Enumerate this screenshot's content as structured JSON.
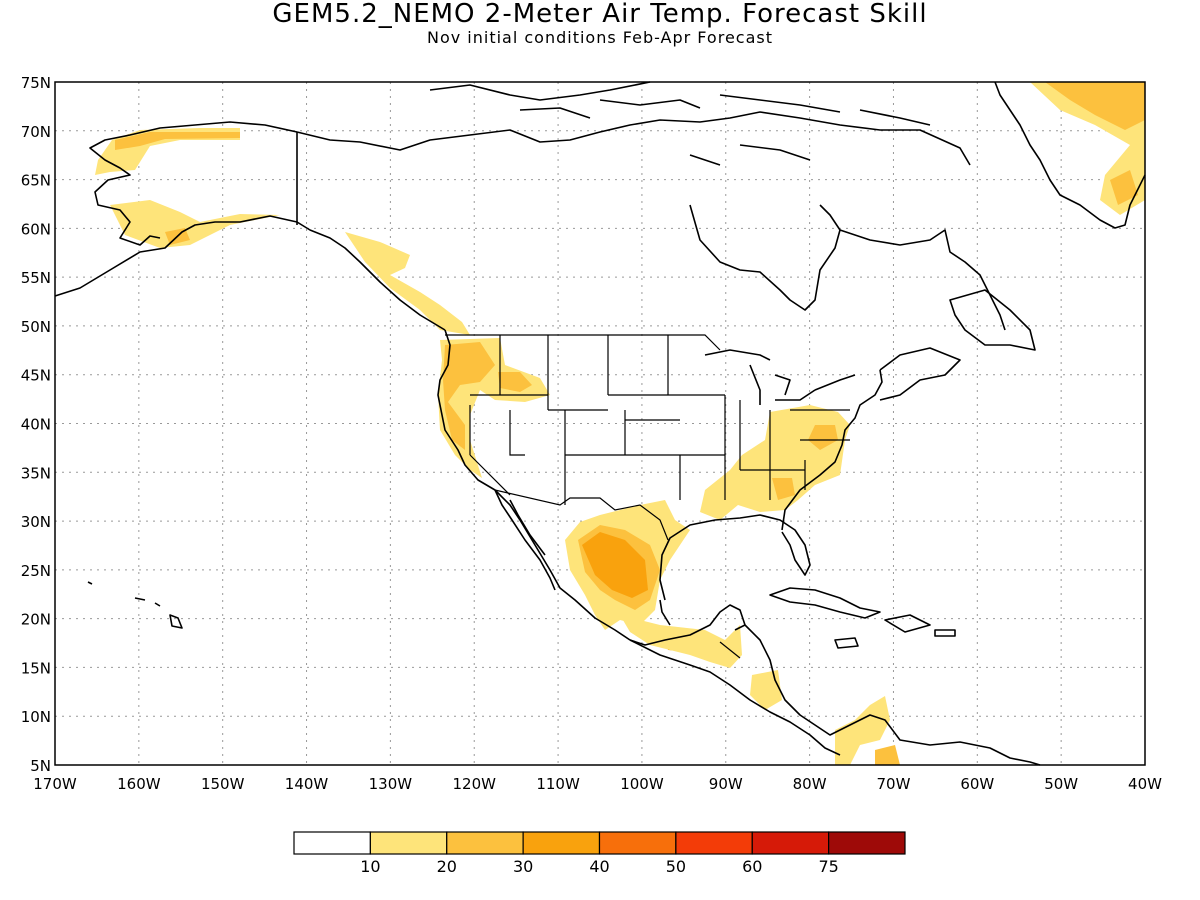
{
  "title": "GEM5.2_NEMO 2-Meter Air Temp. Forecast Skill",
  "subtitle": "Nov initial conditions  Feb-Apr Forecast",
  "map": {
    "lat_labels": [
      "75N",
      "70N",
      "65N",
      "60N",
      "55N",
      "50N",
      "45N",
      "40N",
      "35N",
      "30N",
      "25N",
      "20N",
      "15N",
      "10N",
      "5N"
    ],
    "lon_labels": [
      "170W",
      "160W",
      "150W",
      "140W",
      "130W",
      "120W",
      "110W",
      "100W",
      "90W",
      "80W",
      "70W",
      "60W",
      "50W",
      "40W"
    ],
    "gridlines": true
  },
  "legend": {
    "labels": [
      "10",
      "20",
      "30",
      "40",
      "50",
      "60",
      "75"
    ],
    "colors": [
      "#ffffff",
      "#fee47a",
      "#fcc13e",
      "#f9a20d",
      "#f76f0b",
      "#f33c08",
      "#d61a08",
      "#9e0a08"
    ]
  }
}
